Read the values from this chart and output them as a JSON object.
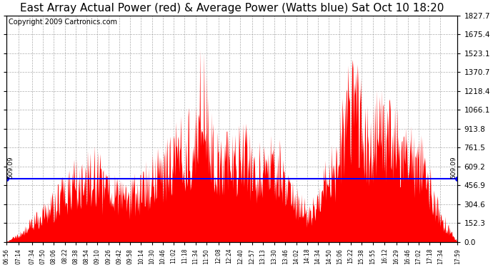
{
  "title": "East Array Actual Power (red) & Average Power (Watts blue) Sat Oct 10 18:20",
  "copyright": "Copyright 2009 Cartronics.com",
  "average_power": 509.09,
  "y_max": 1827.7,
  "y_min": 0.0,
  "ytick_labels": [
    "0.0",
    "152.3",
    "304.6",
    "456.9",
    "609.2",
    "761.5",
    "913.8",
    "1066.1",
    "1218.4",
    "1370.7",
    "1523.1",
    "1675.4",
    "1827.7"
  ],
  "ytick_values": [
    0.0,
    152.3,
    304.6,
    456.9,
    609.2,
    761.5,
    913.8,
    1066.1,
    1218.4,
    1370.7,
    1523.1,
    1675.4,
    1827.7
  ],
  "xtick_labels": [
    "06:56",
    "07:14",
    "07:34",
    "07:50",
    "08:06",
    "08:22",
    "08:38",
    "08:54",
    "09:10",
    "09:26",
    "09:42",
    "09:58",
    "10:14",
    "10:30",
    "10:46",
    "11:02",
    "11:18",
    "11:34",
    "11:50",
    "12:08",
    "12:24",
    "12:40",
    "12:57",
    "13:13",
    "13:30",
    "13:46",
    "14:02",
    "14:18",
    "14:34",
    "14:50",
    "15:06",
    "15:22",
    "15:38",
    "15:55",
    "16:12",
    "16:29",
    "16:46",
    "17:02",
    "17:18",
    "17:34",
    "17:59"
  ],
  "fill_color": "#FF0000",
  "line_color": "#0000FF",
  "background_color": "#FFFFFF",
  "plot_bg_color": "#FFFFFF",
  "grid_color": "#999999",
  "title_fontsize": 11,
  "copyright_fontsize": 7,
  "avg_label": "509.09"
}
